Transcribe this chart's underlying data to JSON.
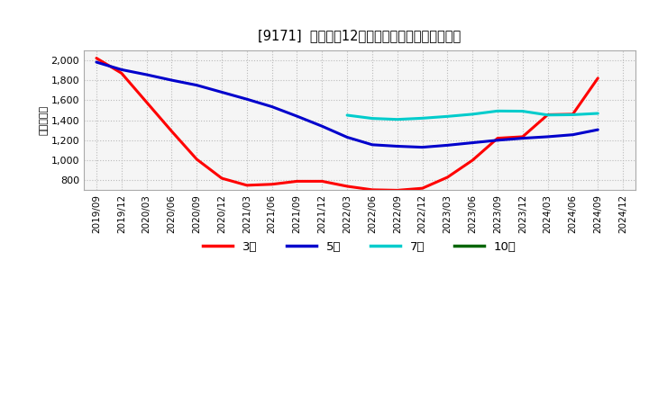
{
  "title": "[9171]  経常利益12か月移動合計の平均値の推移",
  "ylabel": "（百万円）",
  "background_color": "#ffffff",
  "plot_bg_color": "#f5f5f5",
  "grid_color": "#aaaaaa",
  "ylim": [
    700,
    2100
  ],
  "yticks": [
    800,
    1000,
    1200,
    1400,
    1600,
    1800,
    2000
  ],
  "series": {
    "3年": {
      "color": "#ff0000",
      "linewidth": 2.2,
      "data": [
        [
          "2019/09",
          2020
        ],
        [
          "2019/12",
          1870
        ],
        [
          "2020/03",
          1580
        ],
        [
          "2020/06",
          1290
        ],
        [
          "2020/09",
          1010
        ],
        [
          "2020/12",
          820
        ],
        [
          "2021/03",
          750
        ],
        [
          "2021/06",
          760
        ],
        [
          "2021/09",
          790
        ],
        [
          "2021/12",
          790
        ],
        [
          "2022/03",
          740
        ],
        [
          "2022/06",
          705
        ],
        [
          "2022/09",
          700
        ],
        [
          "2022/12",
          720
        ],
        [
          "2023/03",
          830
        ],
        [
          "2023/06",
          1000
        ],
        [
          "2023/09",
          1220
        ],
        [
          "2023/12",
          1235
        ],
        [
          "2024/03",
          1455
        ],
        [
          "2024/06",
          1460
        ],
        [
          "2024/09",
          1820
        ]
      ]
    },
    "5年": {
      "color": "#0000cc",
      "linewidth": 2.2,
      "data": [
        [
          "2019/09",
          1980
        ],
        [
          "2019/12",
          1905
        ],
        [
          "2020/03",
          1855
        ],
        [
          "2020/06",
          1800
        ],
        [
          "2020/09",
          1750
        ],
        [
          "2020/12",
          1680
        ],
        [
          "2021/03",
          1610
        ],
        [
          "2021/06",
          1535
        ],
        [
          "2021/09",
          1440
        ],
        [
          "2021/12",
          1340
        ],
        [
          "2022/03",
          1230
        ],
        [
          "2022/06",
          1155
        ],
        [
          "2022/09",
          1140
        ],
        [
          "2022/12",
          1130
        ],
        [
          "2023/03",
          1150
        ],
        [
          "2023/06",
          1175
        ],
        [
          "2023/09",
          1200
        ],
        [
          "2023/12",
          1220
        ],
        [
          "2024/03",
          1235
        ],
        [
          "2024/06",
          1255
        ],
        [
          "2024/09",
          1305
        ]
      ]
    },
    "7年": {
      "color": "#00cccc",
      "linewidth": 2.2,
      "data": [
        [
          "2022/03",
          1450
        ],
        [
          "2022/06",
          1418
        ],
        [
          "2022/09",
          1408
        ],
        [
          "2022/12",
          1420
        ],
        [
          "2023/03",
          1438
        ],
        [
          "2023/06",
          1460
        ],
        [
          "2023/09",
          1492
        ],
        [
          "2023/12",
          1490
        ],
        [
          "2024/03",
          1452
        ],
        [
          "2024/06",
          1455
        ],
        [
          "2024/09",
          1468
        ]
      ]
    },
    "10年": {
      "color": "#006600",
      "linewidth": 2.2,
      "data": []
    }
  },
  "xtick_labels": [
    "2019/09",
    "2019/12",
    "2020/03",
    "2020/06",
    "2020/09",
    "2020/12",
    "2021/03",
    "2021/06",
    "2021/09",
    "2021/12",
    "2022/03",
    "2022/06",
    "2022/09",
    "2022/12",
    "2023/03",
    "2023/06",
    "2023/09",
    "2023/12",
    "2024/03",
    "2024/06",
    "2024/09",
    "2024/12"
  ],
  "legend_labels": [
    "3年",
    "5年",
    "7年",
    "10年"
  ],
  "legend_colors": [
    "#ff0000",
    "#0000cc",
    "#00cccc",
    "#006600"
  ]
}
